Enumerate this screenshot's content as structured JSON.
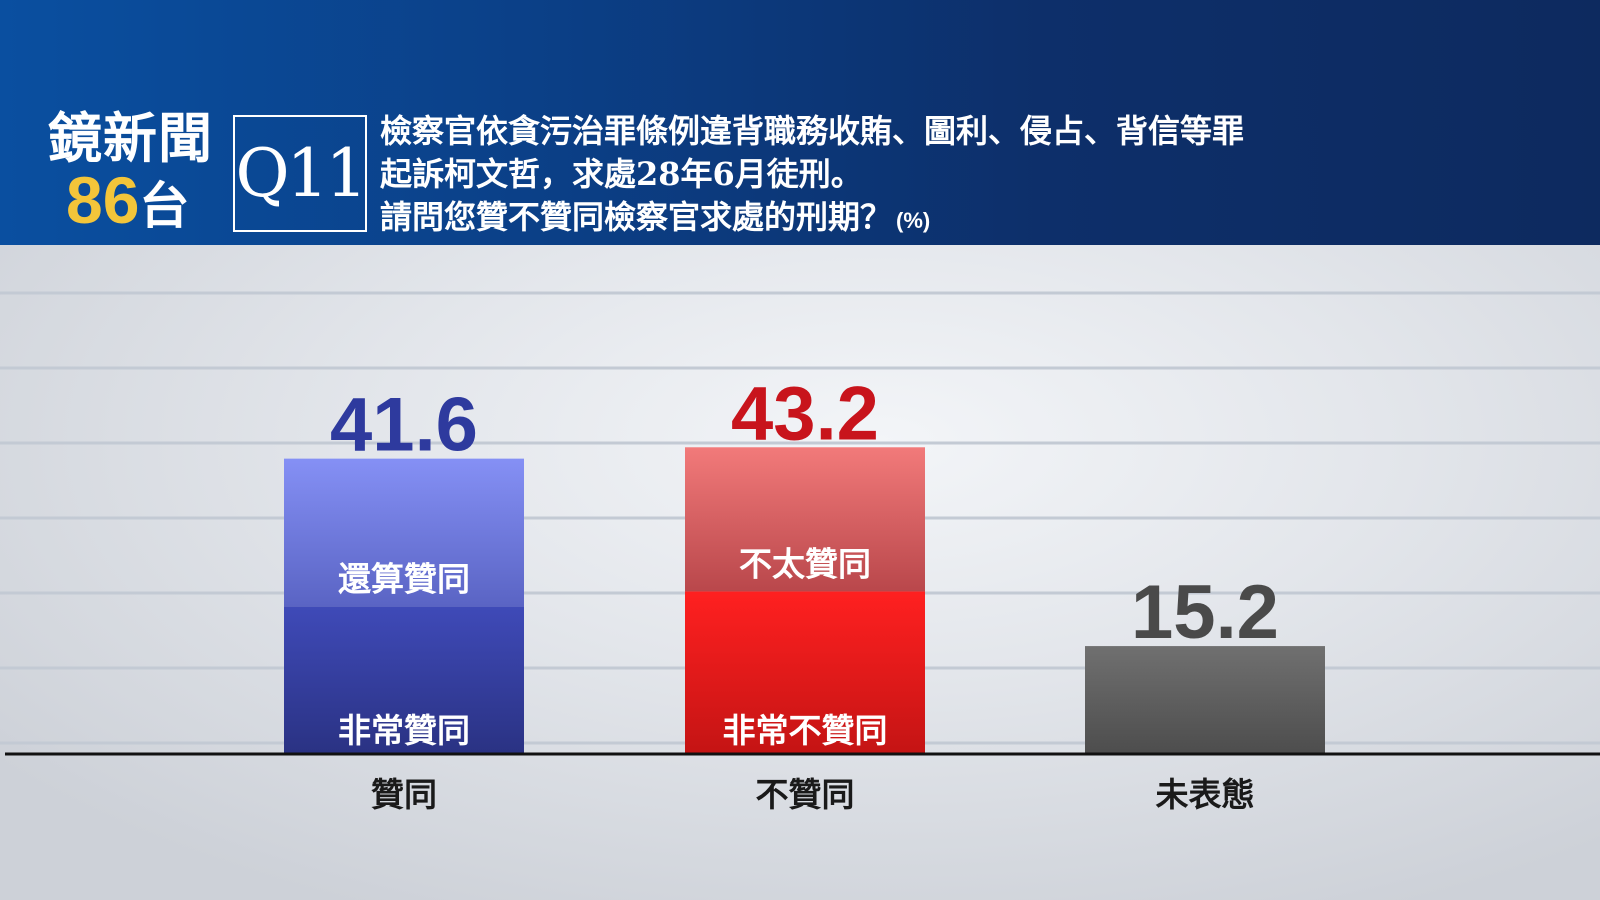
{
  "header": {
    "logo_line1": "鏡新聞",
    "logo_num": "86",
    "logo_char": "台",
    "question_number": "Q11",
    "question_lines": [
      "檢察官依貪污治罪條例違背職務收賄、圖利、侵占、背信等罪",
      "起訴柯文哲，求處28年6月徒刑。",
      "請問您贊不贊同檢察官求處的刑期？"
    ],
    "unit": "(%)"
  },
  "colors": {
    "header_bg": "#0d2f6a",
    "logo_accent": "#f3c53a",
    "agree_value": "#2e3a9e",
    "disagree_value": "#c8141c",
    "neutral_value": "#4a4a4a",
    "agree_top": "#7b86ee",
    "agree_bottom": "#2b3593",
    "disagree_top": "#ec6a6a",
    "disagree_bottom": "#cf1b1b",
    "neutral_bar": "#5a5a5a"
  },
  "chart_data": {
    "type": "bar",
    "title": "",
    "xlabel": "",
    "ylabel": "",
    "ylim": [
      0,
      60
    ],
    "grid": true,
    "legend": "none",
    "categories": [
      "贊同",
      "不贊同",
      "未表態"
    ],
    "values": [
      41.6,
      43.2,
      15.2
    ],
    "value_labels": [
      "41.6",
      "43.2",
      "15.2"
    ],
    "segments": [
      [
        {
          "label": "非常贊同",
          "share": 0.5
        },
        {
          "label": "還算贊同",
          "share": 0.5
        }
      ],
      [
        {
          "label": "非常不贊同",
          "share": 0.53
        },
        {
          "label": "不太贊同",
          "share": 0.47
        }
      ],
      [
        {
          "label": "",
          "share": 1
        }
      ]
    ]
  }
}
